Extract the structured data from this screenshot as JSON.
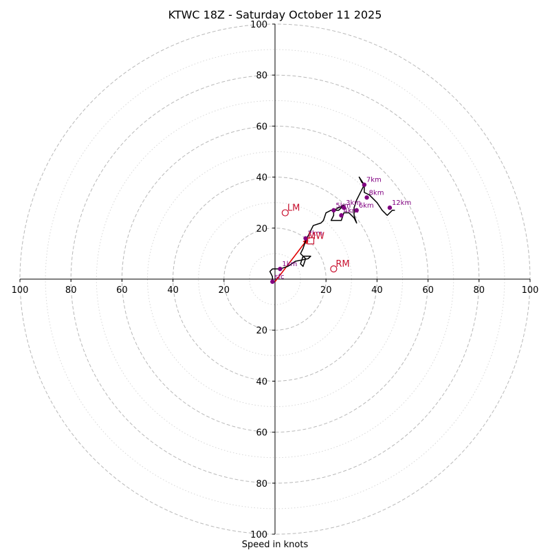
{
  "chart_data": {
    "type": "hodograph",
    "title": "KTWC 18Z - Saturday October 11 2025",
    "xlabel": "Speed in knots",
    "range": [
      -100,
      100
    ],
    "rings_major": [
      20,
      40,
      60,
      80,
      100
    ],
    "rings_minor": [
      10,
      30,
      50,
      70,
      90
    ],
    "tick_values": [
      100,
      80,
      60,
      40,
      20
    ],
    "x_tick_labels": [
      "100",
      "80",
      "60",
      "40",
      "20",
      "20",
      "40",
      "60",
      "80",
      "100"
    ],
    "y_tick_labels": [
      "100",
      "80",
      "60",
      "40",
      "20",
      "20",
      "40",
      "60",
      "80",
      "100"
    ],
    "hodograph_trace": [
      [
        -1,
        -1
      ],
      [
        -1,
        1
      ],
      [
        -2,
        3
      ],
      [
        -1,
        4
      ],
      [
        2,
        4
      ],
      [
        5,
        5
      ],
      [
        8,
        7
      ],
      [
        13,
        8
      ],
      [
        14,
        9
      ],
      [
        11,
        9
      ],
      [
        10,
        6
      ],
      [
        11,
        5
      ],
      [
        12,
        8
      ],
      [
        10,
        10
      ],
      [
        11,
        12
      ],
      [
        12,
        15
      ],
      [
        14,
        19
      ],
      [
        15,
        21
      ],
      [
        18,
        22
      ],
      [
        19,
        23
      ],
      [
        20,
        26
      ],
      [
        22,
        27
      ],
      [
        23,
        27
      ],
      [
        25,
        28
      ],
      [
        27,
        29
      ],
      [
        25,
        27
      ],
      [
        23,
        27
      ],
      [
        23,
        25
      ],
      [
        22,
        23
      ],
      [
        24,
        23
      ],
      [
        26,
        23
      ],
      [
        27,
        26
      ],
      [
        29,
        26
      ],
      [
        31,
        24
      ],
      [
        32,
        22
      ],
      [
        31,
        25
      ],
      [
        31,
        28
      ],
      [
        32,
        31
      ],
      [
        33,
        33
      ],
      [
        34,
        35
      ],
      [
        35,
        37
      ],
      [
        34,
        38
      ],
      [
        33,
        40
      ],
      [
        35,
        37
      ],
      [
        35,
        34
      ],
      [
        37,
        33
      ],
      [
        40,
        30
      ],
      [
        42,
        27
      ],
      [
        44,
        25
      ],
      [
        46,
        27
      ],
      [
        47,
        27
      ]
    ],
    "height_markers": [
      {
        "label": "sfc",
        "u": -1,
        "v": -1
      },
      {
        "label": "1km",
        "u": 2,
        "v": 4
      },
      {
        "label": "2km",
        "u": 12,
        "v": 16
      },
      {
        "label": "3km",
        "u": 27,
        "v": 28
      },
      {
        "label": "4km",
        "u": 26,
        "v": 25
      },
      {
        "label": "5km",
        "u": 23,
        "v": 27
      },
      {
        "label": "6km",
        "u": 32,
        "v": 27
      },
      {
        "label": "7km",
        "u": 35,
        "v": 37
      },
      {
        "label": "8km",
        "u": 36,
        "v": 32
      },
      {
        "label": "12km",
        "u": 45,
        "v": 28
      }
    ],
    "storm_motion": {
      "RM": {
        "u": 23,
        "v": 4
      },
      "LM": {
        "u": 4,
        "v": 26
      },
      "MW": {
        "u": 14,
        "v": 15
      }
    },
    "shear_vector": {
      "from": {
        "u": 0,
        "v": -1
      },
      "to": {
        "u": 13,
        "v": 16
      }
    },
    "colors": {
      "trace": "#000000",
      "markers": "#800080",
      "motion": "#c8102e",
      "shear": "#e00000",
      "grid_major": "#b8b8b8",
      "grid_minor": "#d6d6d6",
      "axis": "#000000"
    }
  }
}
